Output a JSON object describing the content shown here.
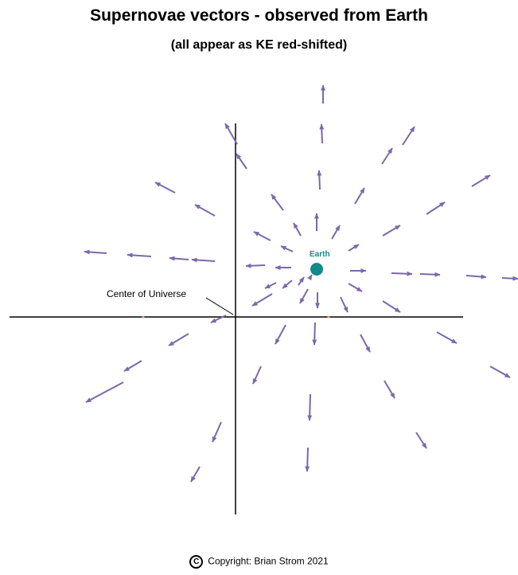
{
  "title": "Supernovae vectors - observed from Earth",
  "subtitle": "(all appear as KE red-shifted)",
  "labels": {
    "earth": "Earth",
    "center": "Center of Universe"
  },
  "copyright": {
    "symbol": "C",
    "text": "Copyright:  Brian Strom 2021"
  },
  "colors": {
    "arrow": "#7b68a8",
    "earth": "#138a8a",
    "axes": "#000000",
    "dots": "#e9a070"
  }
}
